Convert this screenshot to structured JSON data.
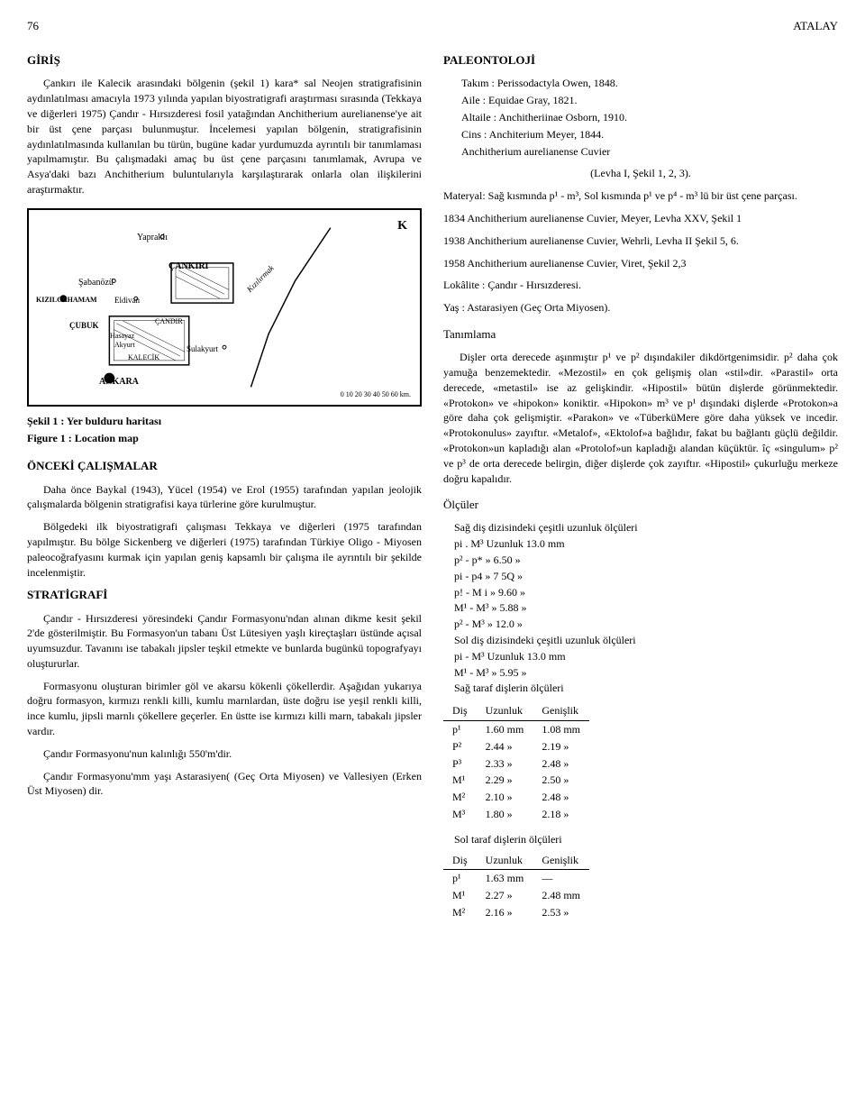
{
  "header": {
    "page_number": "76",
    "running_head": "ATALAY"
  },
  "left": {
    "section1_title": "GİRİŞ",
    "intro_para": "Çankırı ile Kalecik arasındaki bölgenin (şekil 1) kara* sal Neojen stratigrafisinin aydınlatılması amacıyla 1973 yılında yapılan biyostratigrafi araştırması sırasında (Tekkaya ve diğerleri 1975) Çandır - Hırsızderesi fosil yatağından Anchitherium aurelianense'ye ait bir üst çene parçası bulunmuştur. İncelemesi yapılan bölgenin, stratigrafisinin aydınlatılmasında kullanılan bu türün, bugüne kadar yurdumuzda ayrıntılı bir tanımlaması yapılmamıştır. Bu çalışmadaki amaç bu üst çene parçasını tanımlamak, Avrupa ve Asya'daki bazı Anchitherium buluntularıyla karşılaştırarak onlarla olan ilişkilerini araştırmaktır.",
    "map": {
      "labels": {
        "yaprakli": "Yapraklı",
        "cankiri": "ÇANKIRI",
        "sabanozu": "Şabanözü",
        "kizilcahamam": "KIZILCAHAMAM",
        "eldivan": "Eldivan",
        "cubuk": "ÇUBUK",
        "candir": "ÇANDIR",
        "hasayaz": "Hasayaz",
        "akyurt": "Akyurt",
        "sulakyurt": "Sulakyurt",
        "kalecik": "KALECİK",
        "ankara": "ANKARA",
        "kizilirmak": "Kızılırmak"
      },
      "north_label": "K",
      "scale": "0 10 20 30 40 50 60 km."
    },
    "fig_caption_tr": "Şekil 1 : Yer bulduru haritası",
    "fig_caption_en": "Figure 1 : Location map",
    "section2_title": "ÖNCEKİ ÇALIŞMALAR",
    "prev_para1": "Daha önce Baykal (1943), Yücel (1954) ve Erol (1955) tarafından yapılan jeolojik çalışmalarda bölgenin stratigrafisi kaya türlerine göre kurulmuştur.",
    "prev_para2": "Bölgedeki ilk biyostratigrafi çalışması Tekkaya ve diğerleri (1975 tarafından yapılmıştır. Bu bölge Sickenberg ve diğerleri (1975) tarafından Türkiye Oligo - Miyosen paleocoğrafyasını kurmak için yapılan geniş kapsamlı bir çalışma ile ayrıntılı bir şekilde incelenmiştir.",
    "section3_title": "STRATİGRAFİ",
    "strat_para1": "Çandır - Hırsızderesi yöresindeki Çandır Formasyonu'ndan alınan dikme kesit şekil 2'de gösterilmiştir. Bu Formasyon'un tabanı Üst Lütesiyen yaşlı kireçtaşları üstünde açısal uyumsuzdur. Tavanını ise tabakalı jipsler teşkil etmekte ve bunlarda bugünkü topografyayı oluştururlar.",
    "strat_para2": "Formasyonu oluşturan birimler göl ve akarsu kökenli çökellerdir. Aşağıdan yukarıya doğru formasyon, kırmızı renkli killi, kumlu marnlardan, üste doğru ise yeşil renkli killi, ince kumlu, jipsli marnlı çökellere geçerler. En üstte ise kırmızı killi marn, tabakalı jipsler vardır.",
    "strat_para3": "Çandır Formasyonu'nun kalınlığı 550'm'dir.",
    "strat_para4": "Çandır Formasyonu'mm yaşı Astarasiyen( (Geç Orta Miyosen) ve Vallesiyen (Erken Üst Miyosen) dir."
  },
  "right": {
    "section_title": "PALEONTOLOJİ",
    "taxonomy": {
      "takim": "Takım : Perissodactyla Owen, 1848.",
      "aile": "Aile : Equidae Gray, 1821.",
      "altaile": "Altaile : Anchitheriinae Osborn, 1910.",
      "cins": "Cins : Anchiterium Meyer, 1844.",
      "species": "Anchitherium aurelianense Cuvier"
    },
    "plate_ref": "(Levha I, Şekil 1, 2, 3).",
    "material": "Materyal: Sağ kısmında p¹ - m³, Sol kısmında p¹ ve p⁴ - m³ lü bir üst çene parçası.",
    "syn1": "1834 Anchitherium aurelianense Cuvier, Meyer, Levha XXV, Şekil 1",
    "syn2": "1938 Anchitherium aurelianense Cuvier, Wehrli, Levha II Şekil 5, 6.",
    "syn3": "1958 Anchitherium aurelianense Cuvier, Viret, Şekil 2,3",
    "lokalite": "Lokâlite : Çandır - Hırsızderesi.",
    "yas": "Yaş : Astarasiyen (Geç Orta Miyosen).",
    "desc_title": "Tanımlama",
    "desc_para": "Dişler orta derecede aşınmıştır p¹ ve p² dışındakiler dikdörtgenimsidir. p² daha çok yamuğa benzemektedir. «Mezostil» en çok gelişmiş olan «stil»dir. «Parastil» orta derecede, «metastil» ise az gelişkindir. «Hipostil» bütün dişlerde görünmektedir. «Protokon» ve «hipokon» koniktir. «Hipokon» m³ ve p¹ dışındaki dişlerde «Protokon»a göre daha çok gelişmiştir. «Parakon» ve «TüberküMere göre daha yüksek ve incedir. «Protokonulus» zayıftır. «Metalof», «Ektolof»a bağlıdır, fakat bu bağlantı güçlü değildir. «Protokon»un kapladığı alan «Protolof»un kapladığı alandan küçüktür. îç «singulum» p² ve p³ de orta derecede belirgin, diğer dişlerde çok zayıftır. «Hipostil» çukurluğu merkeze doğru kapalıdır.",
    "meas_title": "Ölçüler",
    "meas_right_label": "Sağ diş dizisindeki çeşitli uzunluk ölçüleri",
    "meas_right": [
      "pi . M³ Uzunluk 13.0 mm",
      "p² - p*     »     6.50  »",
      "pi - p4    »     7 5Q  »",
      "p! - M i   »     9.60  »",
      "M¹ - M³   »     5.88  »",
      "p² - M³   »     12.0  »"
    ],
    "meas_left_label": "Sol diş dizisindeki çeşitli uzunluk ölçüleri",
    "meas_left": [
      "pi - M³ Uzunluk 13.0 mm",
      "M¹ - M³    »     5.95  »"
    ],
    "table1_caption": "Sağ taraf dişlerin ölçüleri",
    "table1": {
      "headers": [
        "Diş",
        "Uzunluk",
        "Genişlik"
      ],
      "rows": [
        [
          "p¹",
          "1.60 mm",
          "1.08 mm"
        ],
        [
          "P²",
          "2.44  »",
          "2.19  »"
        ],
        [
          "P³",
          "2.33  »",
          "2.48  »"
        ],
        [
          "M¹",
          "2.29  »",
          "2.50  »"
        ],
        [
          "M²",
          "2.10  »",
          "2.48  »"
        ],
        [
          "M³",
          "1.80  »",
          "2.18  »"
        ]
      ]
    },
    "table2_caption": "Sol taraf dişlerin ölçüleri",
    "table2": {
      "headers": [
        "Diş",
        "Uzunluk",
        "Genişlik"
      ],
      "rows": [
        [
          "p¹",
          "1.63 mm",
          "—"
        ],
        [
          "M¹",
          "2.27  »",
          "2.48 mm"
        ],
        [
          "M²",
          "2.16  »",
          "2.53  »"
        ]
      ]
    }
  }
}
